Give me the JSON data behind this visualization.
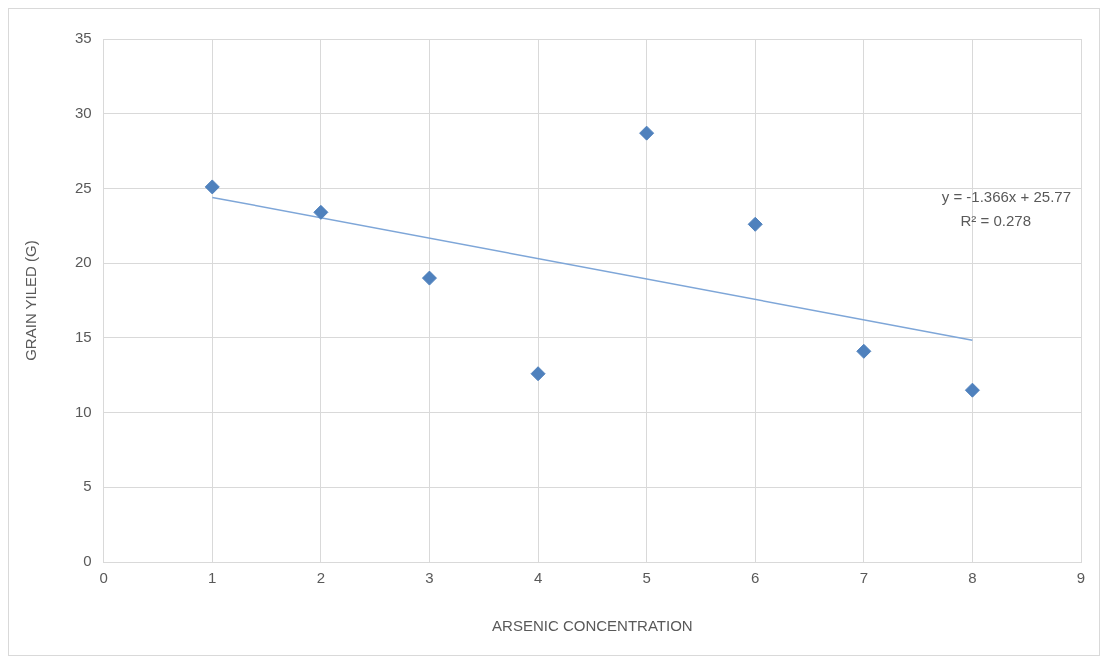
{
  "chart_data": {
    "type": "scatter",
    "xlabel": "ARSENIC CONCENTRATION",
    "ylabel": "GRAIN YILED (G)",
    "x": [
      1,
      2,
      3,
      4,
      5,
      6,
      7,
      8
    ],
    "series": [
      {
        "color": "#4f81bd",
        "marker": "diamond",
        "values": [
          25.1,
          23.4,
          19.0,
          12.6,
          28.7,
          22.6,
          14.1,
          11.5
        ]
      },
      {
        "type": "line",
        "color": "#7ea6d8",
        "marker": "none",
        "x": [
          1,
          8
        ],
        "values": [
          24.4,
          14.84
        ]
      }
    ],
    "xlim": [
      0,
      9
    ],
    "xticks": [
      0,
      1,
      2,
      3,
      4,
      5,
      6,
      7,
      8,
      9
    ],
    "ylim": [
      0,
      35
    ],
    "yticks": [
      0,
      5,
      10,
      15,
      20,
      25,
      30,
      35
    ],
    "grid": true,
    "legend": false,
    "annotations": [
      "y = -1.366x + 25.77",
      "R² = 0.278"
    ]
  }
}
